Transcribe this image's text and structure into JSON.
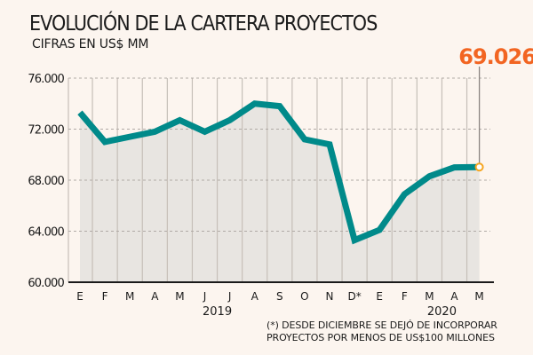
{
  "chart_data": {
    "type": "area",
    "title": "EVOLUCIÓN DE LA CARTERA PROYECTOS",
    "subtitle": "CIFRAS EN US$ MM",
    "xlabel": "",
    "ylabel": "",
    "categories": [
      "E",
      "F",
      "M",
      "A",
      "M",
      "J",
      "J",
      "A",
      "S",
      "O",
      "N",
      "D*",
      "E",
      "F",
      "M",
      "A",
      "M"
    ],
    "year_labels": [
      {
        "label": "2019",
        "category_index": 5.5
      },
      {
        "label": "2020",
        "category_index": 14.5
      }
    ],
    "series": [
      {
        "name": "Cartera proyectos",
        "values": [
          73.3,
          71.0,
          71.4,
          71.8,
          72.7,
          71.8,
          72.7,
          74.0,
          73.8,
          71.2,
          70.8,
          63.3,
          64.1,
          66.9,
          68.3,
          69.0,
          69.026
        ],
        "color": "#008a8a"
      }
    ],
    "ylim": [
      60,
      76
    ],
    "yticks": [
      60,
      64,
      68,
      72,
      76
    ],
    "ytick_labels": [
      "60.000",
      "64.000",
      "68.000",
      "72.000",
      "76.000"
    ],
    "grid": true,
    "highlight": {
      "label": "69.026",
      "category_index": 16,
      "color": "#f26522"
    },
    "note_lines": [
      "(*) DESDE DICIEMBRE SE DEJÓ DE INCORPORAR",
      "PROYECTOS POR MENOS DE US$100 MILLONES"
    ],
    "colors": {
      "background": "#fcf5ef",
      "area_fill": "#e8e5e1",
      "line": "#008a8a",
      "marker": "#f5a623",
      "highlight_text": "#f26522",
      "gridline": "#b0aaa5"
    }
  }
}
